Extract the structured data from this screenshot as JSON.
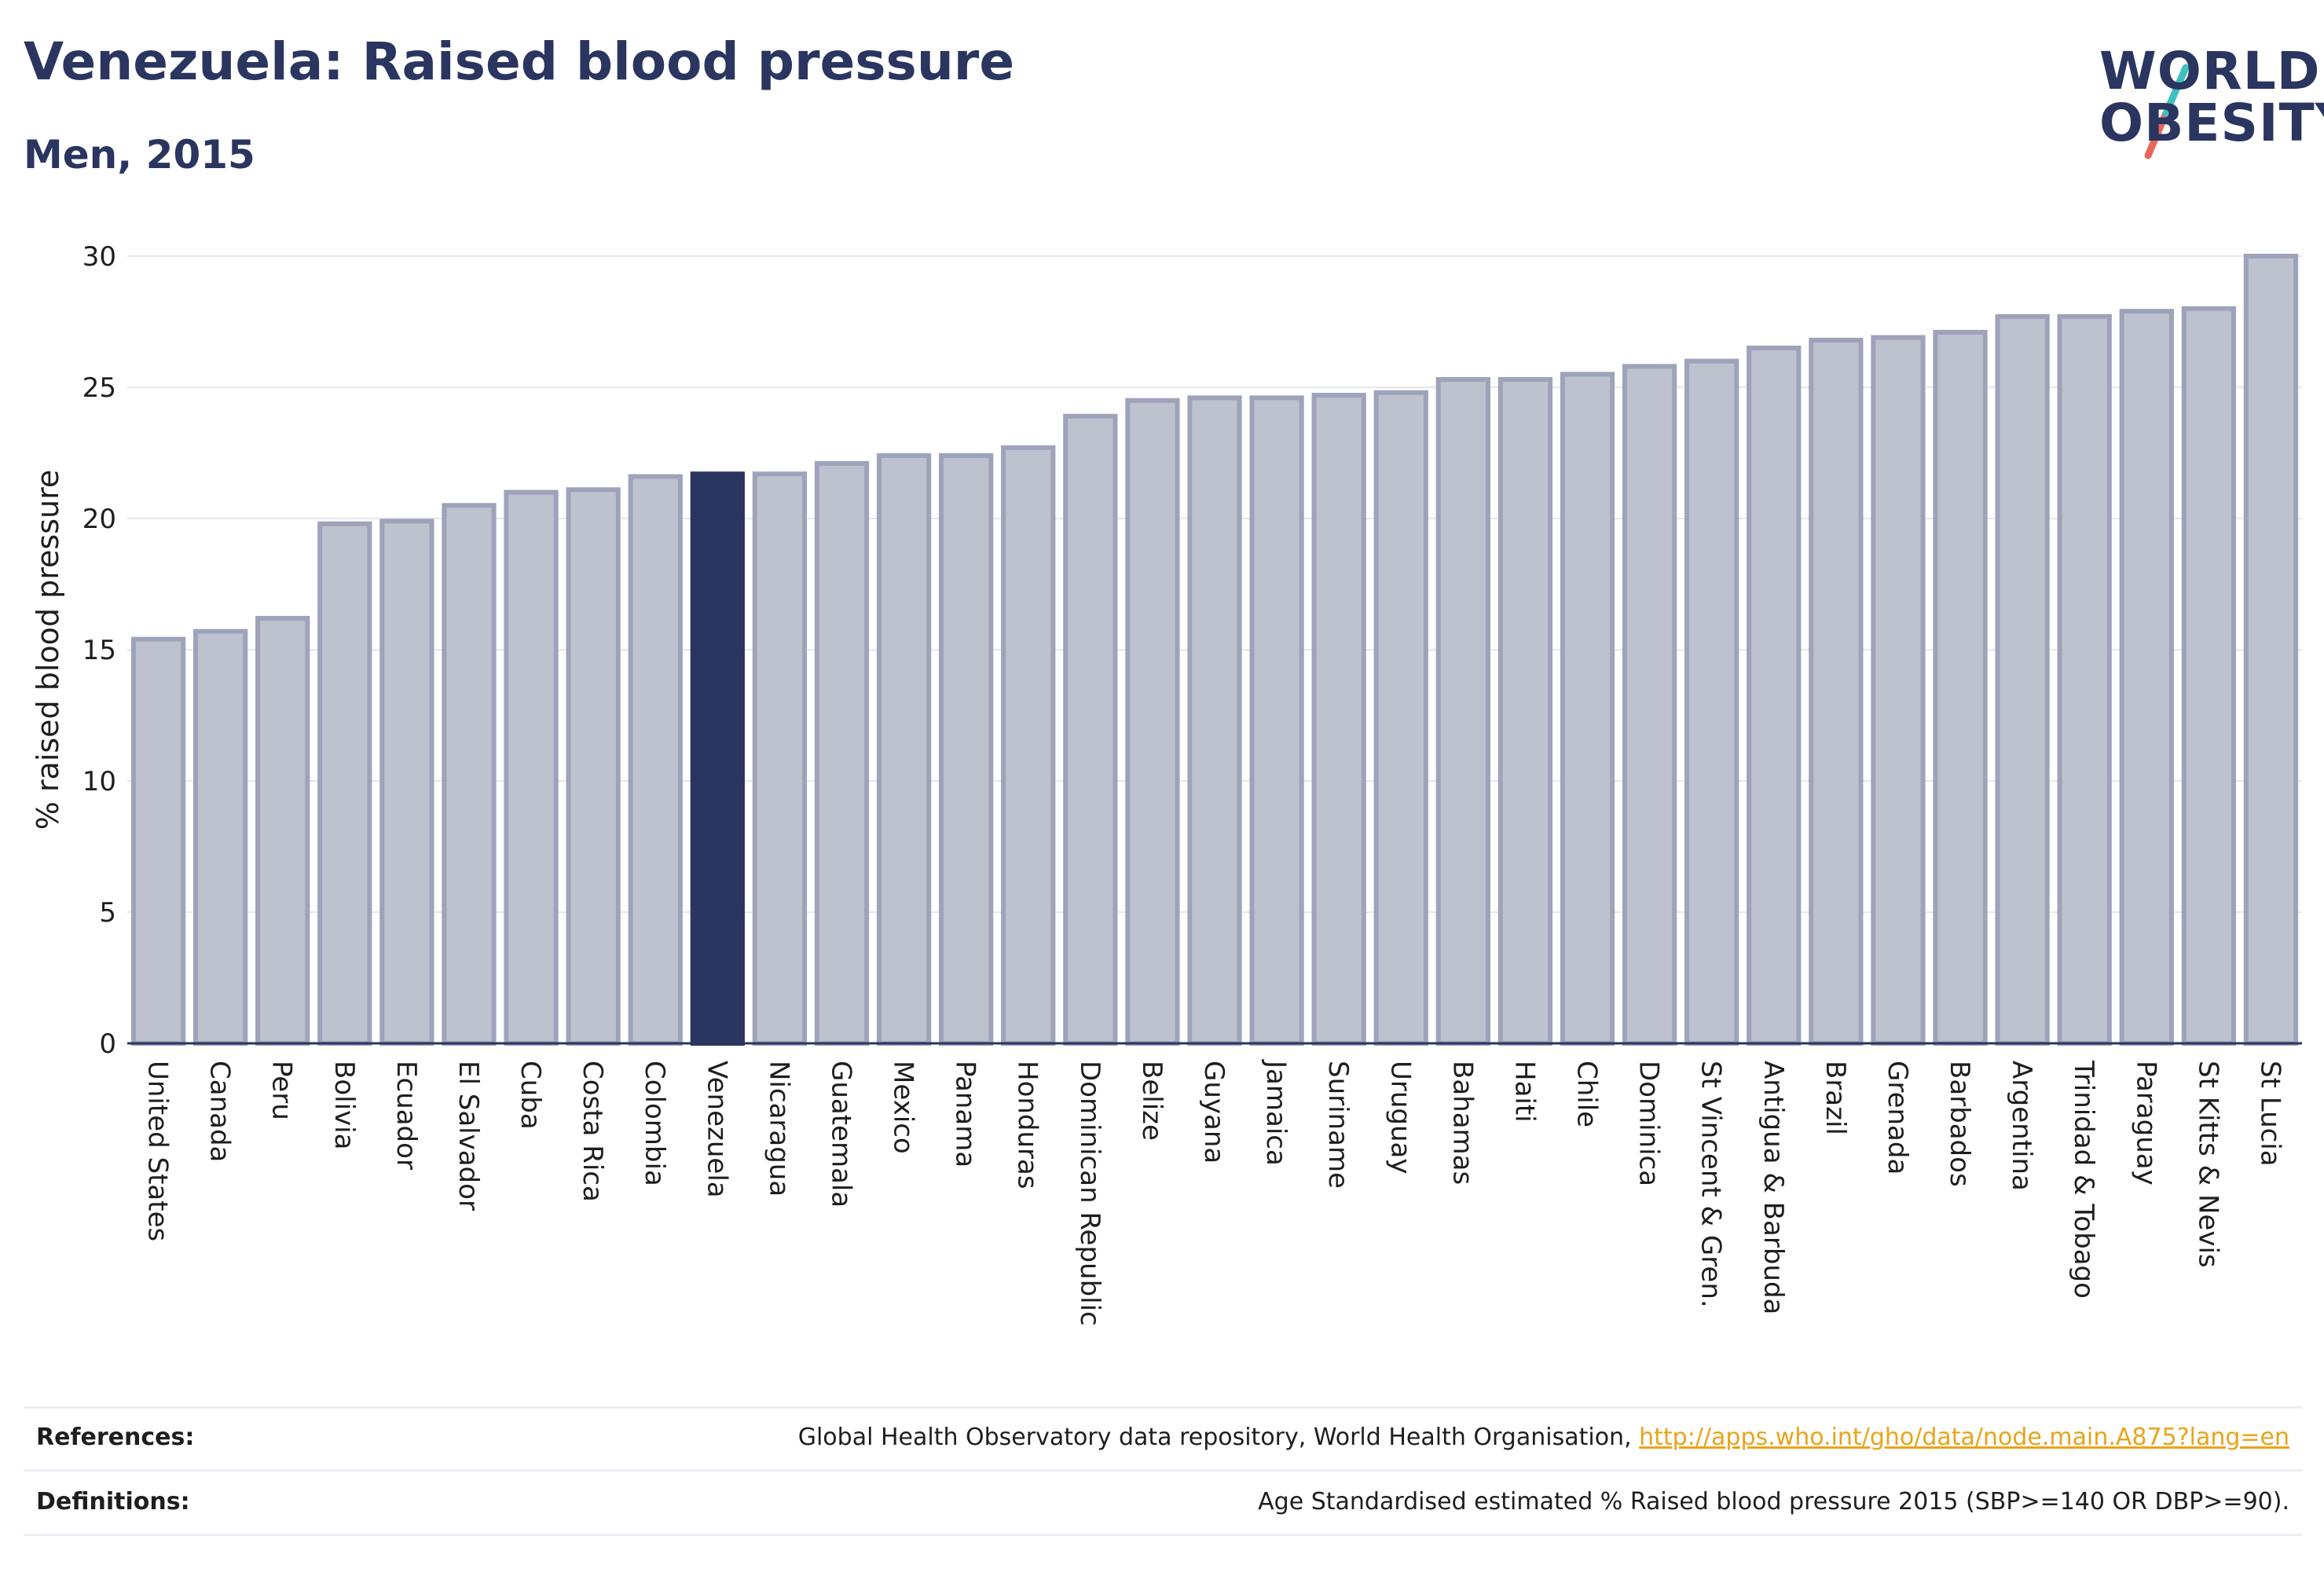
{
  "header": {
    "title": "Venezuela: Raised blood pressure",
    "subtitle": "Men, 2015"
  },
  "logo": {
    "line1": "WORLD",
    "line2": "OBESITY",
    "colors": {
      "text": "#2a3560",
      "slash_top": "#3fc1c0",
      "slash_bottom": "#e8675a"
    }
  },
  "chart_data": {
    "type": "bar",
    "title": "Venezuela: Raised blood pressure",
    "subtitle": "Men, 2015",
    "xlabel": "",
    "ylabel": "% raised blood pressure",
    "ylim": [
      0,
      30
    ],
    "yticks": [
      0,
      5,
      10,
      15,
      20,
      25,
      30
    ],
    "grid": true,
    "highlight": "Venezuela",
    "colors": {
      "bar": "#bec1ce",
      "bar_border": "#9ea3ba",
      "highlight": "#2a3560",
      "grid": "#e6e7ee",
      "axis": "#2a3560"
    },
    "categories": [
      "United States",
      "Canada",
      "Peru",
      "Bolivia",
      "Ecuador",
      "El Salvador",
      "Cuba",
      "Costa Rica",
      "Colombia",
      "Venezuela",
      "Nicaragua",
      "Guatemala",
      "Mexico",
      "Panama",
      "Honduras",
      "Dominican Republic",
      "Belize",
      "Guyana",
      "Jamaica",
      "Suriname",
      "Uruguay",
      "Bahamas",
      "Haiti",
      "Chile",
      "Dominica",
      "St Vincent & Gren.",
      "Antigua & Barbuda",
      "Brazil",
      "Grenada",
      "Barbados",
      "Argentina",
      "Trinidad & Tobago",
      "Paraguay",
      "St Kitts & Nevis",
      "St Lucia"
    ],
    "values": [
      15.4,
      15.7,
      16.2,
      19.8,
      19.9,
      20.5,
      21.0,
      21.1,
      21.6,
      21.7,
      21.7,
      22.1,
      22.4,
      22.4,
      22.7,
      23.9,
      24.5,
      24.6,
      24.6,
      24.7,
      24.8,
      25.3,
      25.3,
      25.5,
      25.8,
      26.0,
      26.5,
      26.8,
      26.9,
      27.1,
      27.7,
      27.7,
      27.9,
      28.0,
      30.0
    ]
  },
  "footer": {
    "references_label": "References:",
    "references_text": "Global Health Observatory data repository, World Health Organisation, ",
    "references_link": "http://apps.who.int/gho/data/node.main.A875?lang=en",
    "definitions_label": "Definitions:",
    "definitions_text": "Age Standardised estimated % Raised blood pressure 2015 (SBP>=140 OR DBP>=90)."
  }
}
